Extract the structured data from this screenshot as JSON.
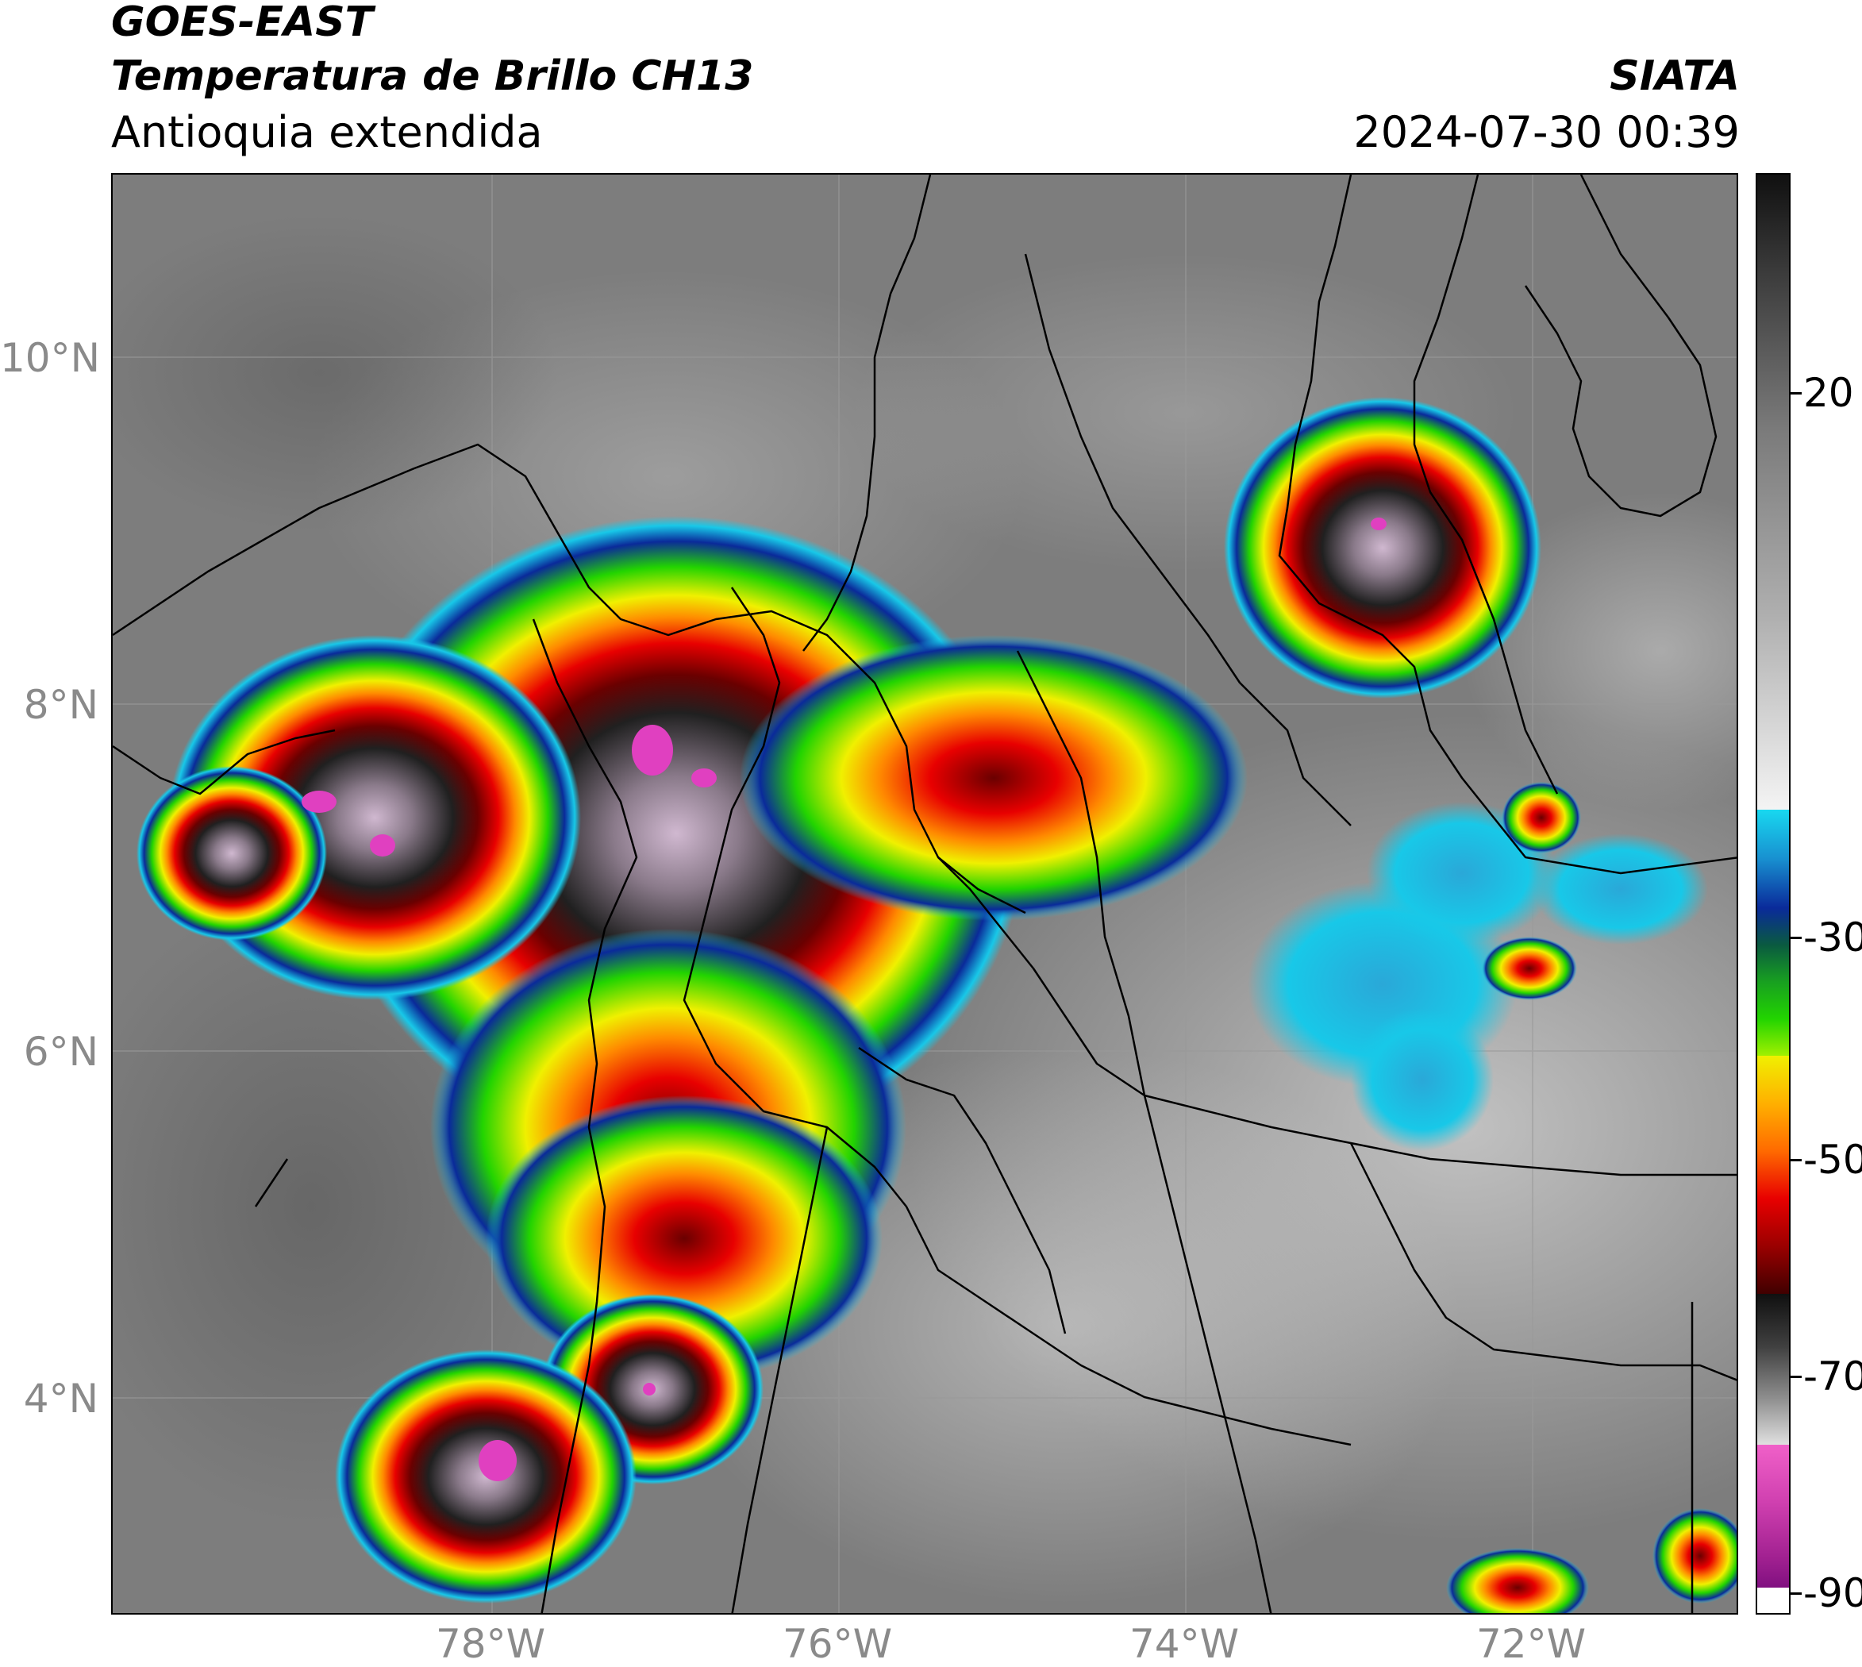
{
  "header": {
    "line1": "GOES-EAST",
    "line2": "Temperatura de Brillo CH13",
    "line3": "Antioquia extendida",
    "source": "SIATA",
    "datetime": "2024-07-30 00:39"
  },
  "axes": {
    "lat_labels": [
      "10°N",
      "8°N",
      "6°N",
      "4°N"
    ],
    "lon_labels": [
      "78°W",
      "76°W",
      "74°W",
      "72°W"
    ]
  },
  "colorbar": {
    "tick_labels": [
      "20",
      "-30",
      "-50",
      "-70",
      "-90"
    ],
    "colors": {
      "warm_gray": "#7d7d7d",
      "cyan": "#18c8e8",
      "blue": "#0a2a9a",
      "green": "#22d400",
      "yellow": "#f0f000",
      "orange": "#ff8a00",
      "red": "#e80000",
      "darkred": "#6a0000",
      "black": "#101010",
      "magenta": "#e040c0"
    }
  },
  "map": {
    "icon": "satellite-brightness-temperature-map"
  }
}
